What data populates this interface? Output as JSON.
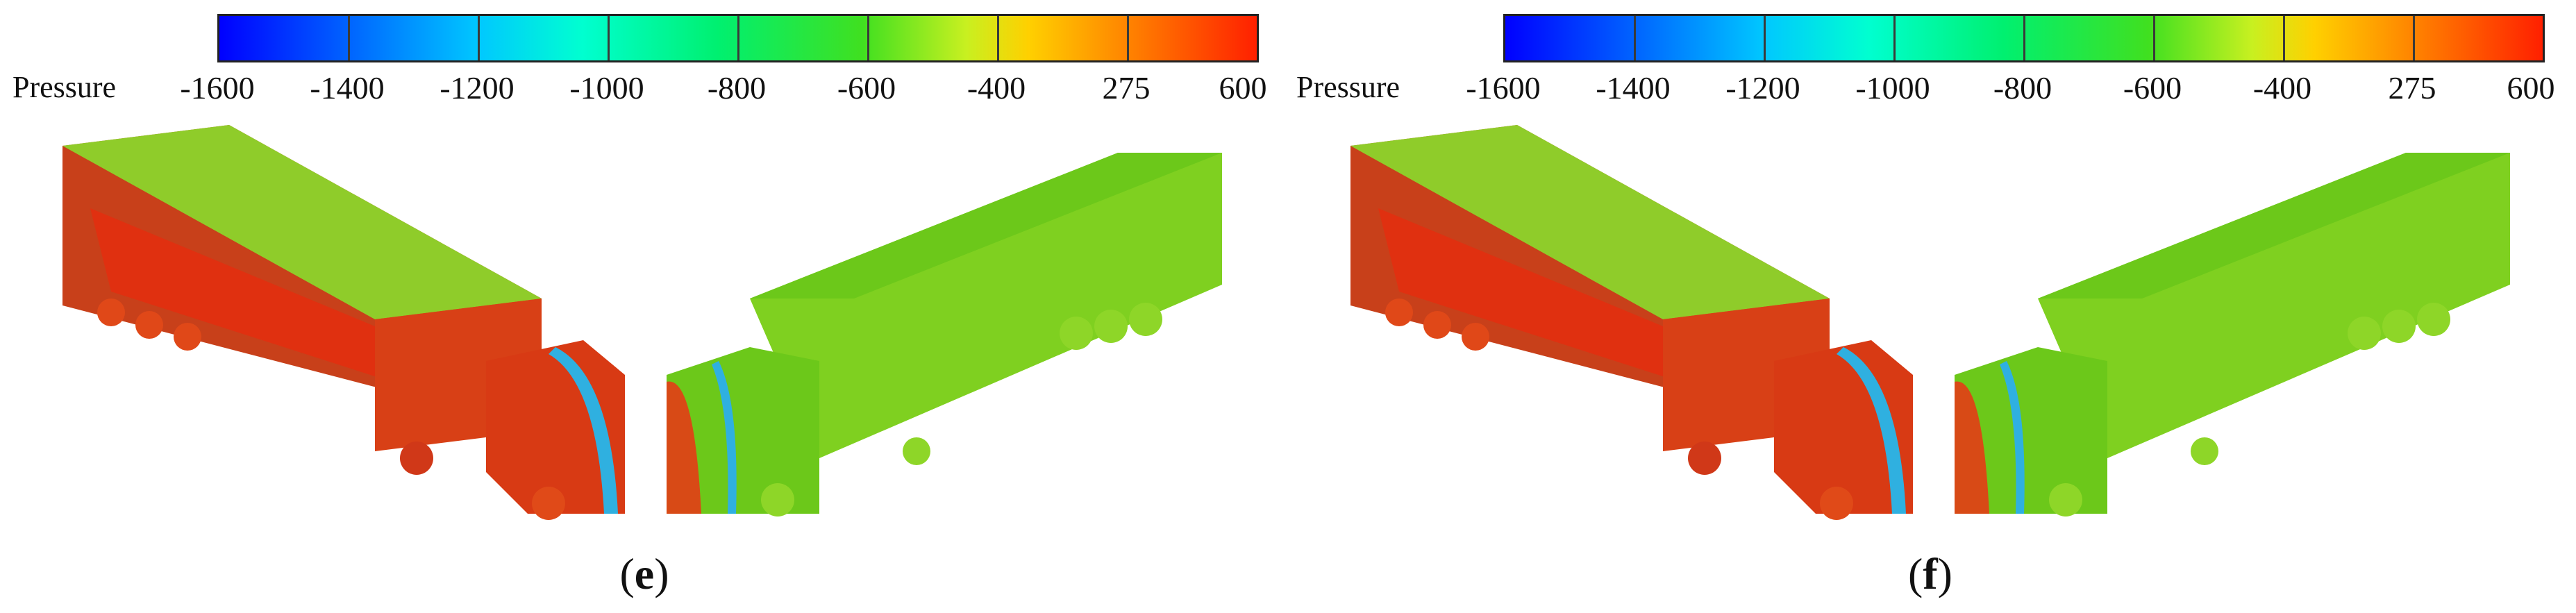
{
  "colorbar": {
    "title": "Pressure",
    "ticks": [
      "-1600",
      "-1400",
      "-1200",
      "-1000",
      "-800",
      "-600",
      "-400",
      "275",
      "600"
    ]
  },
  "panels": [
    {
      "id": "e",
      "caption_letter": "e"
    },
    {
      "id": "f",
      "caption_letter": "f"
    }
  ],
  "colors": {
    "high_pressure": "#e03010",
    "mid_pressure": "#6cc81a",
    "low_pressure": "#0050ff",
    "body_green": "#7fd020"
  }
}
